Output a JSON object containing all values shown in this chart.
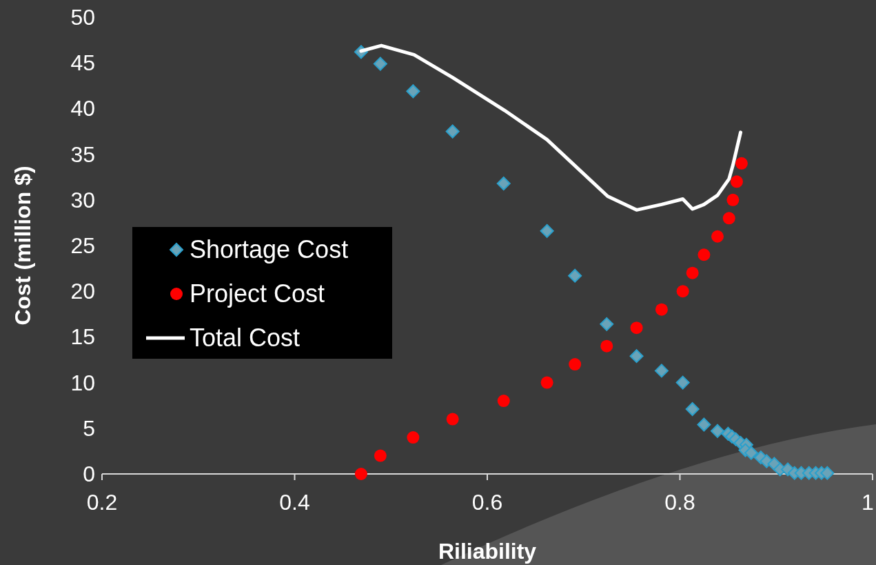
{
  "chart_data": {
    "type": "scatter",
    "xlabel": "Riliability",
    "ylabel": "Cost (million $)",
    "xlim": [
      0.2,
      1
    ],
    "xticks": [
      0.2,
      0.4,
      0.6,
      0.8,
      1
    ],
    "ylim": [
      0,
      50
    ],
    "yticks": [
      0,
      5,
      10,
      15,
      20,
      25,
      30,
      35,
      40,
      45,
      50
    ],
    "grid": false,
    "legend": "left",
    "series": [
      {
        "name": "Shortage Cost",
        "marker": "diamond",
        "color": "#6aa3b8",
        "x": [
          0.469,
          0.489,
          0.523,
          0.564,
          0.617,
          0.662,
          0.691,
          0.724,
          0.755,
          0.781,
          0.803,
          0.813,
          0.825,
          0.839,
          0.85,
          0.854,
          0.858,
          0.863,
          0.869,
          0.868,
          0.874,
          0.884,
          0.89,
          0.898,
          0.904,
          0.912,
          0.919,
          0.926,
          0.934,
          0.941,
          0.947,
          0.953
        ],
        "values": [
          46.2,
          44.9,
          41.9,
          37.5,
          31.8,
          26.6,
          21.7,
          16.4,
          12.9,
          11.3,
          10.0,
          7.1,
          5.4,
          4.7,
          4.4,
          4.1,
          3.8,
          3.4,
          3.2,
          2.6,
          2.3,
          1.8,
          1.4,
          1.1,
          0.5,
          0.5,
          0.1,
          0.1,
          0.1,
          0.1,
          0.1,
          0.1
        ]
      },
      {
        "name": "Project Cost",
        "marker": "circle",
        "color": "#ff0000",
        "x": [
          0.469,
          0.489,
          0.523,
          0.564,
          0.617,
          0.662,
          0.691,
          0.724,
          0.755,
          0.781,
          0.803,
          0.813,
          0.825,
          0.839,
          0.851,
          0.855,
          0.859,
          0.864
        ],
        "values": [
          0,
          2,
          4,
          6,
          8,
          10,
          12,
          14,
          16,
          18,
          20,
          22,
          24,
          26,
          28,
          30,
          32,
          34
        ]
      },
      {
        "name": "Total Cost",
        "type": "line",
        "marker": "none",
        "line_style": "solid",
        "color": "#ffffff",
        "x": [
          0.469,
          0.49,
          0.524,
          0.564,
          0.618,
          0.662,
          0.725,
          0.755,
          0.781,
          0.803,
          0.813,
          0.825,
          0.839,
          0.851,
          0.855,
          0.863
        ],
        "values": [
          46.3,
          46.9,
          45.9,
          43.4,
          39.8,
          36.6,
          30.4,
          28.9,
          29.5,
          30.1,
          29.0,
          29.5,
          30.5,
          32.3,
          33.8,
          37.4
        ]
      }
    ]
  }
}
